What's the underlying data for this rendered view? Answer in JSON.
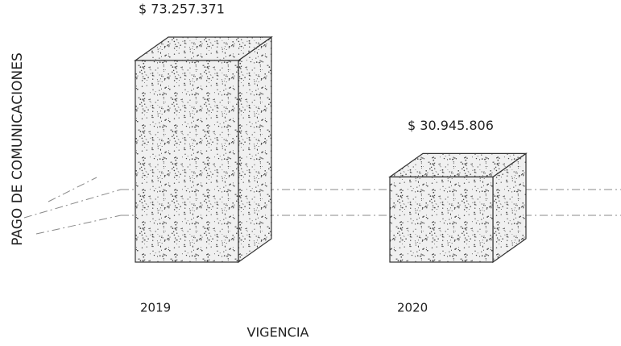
{
  "chart_data": {
    "type": "bar3d",
    "x_label": "VIGENCIA",
    "y_label": "PAGO DE COMUNICACIONES",
    "categories": [
      "2019",
      "2020"
    ],
    "values": [
      73257371,
      30945806
    ],
    "value_labels": [
      "$ 73.257.371",
      "$ 30.945.806"
    ],
    "color": "#e6e6e6",
    "ylim": [
      0,
      80000000
    ]
  }
}
